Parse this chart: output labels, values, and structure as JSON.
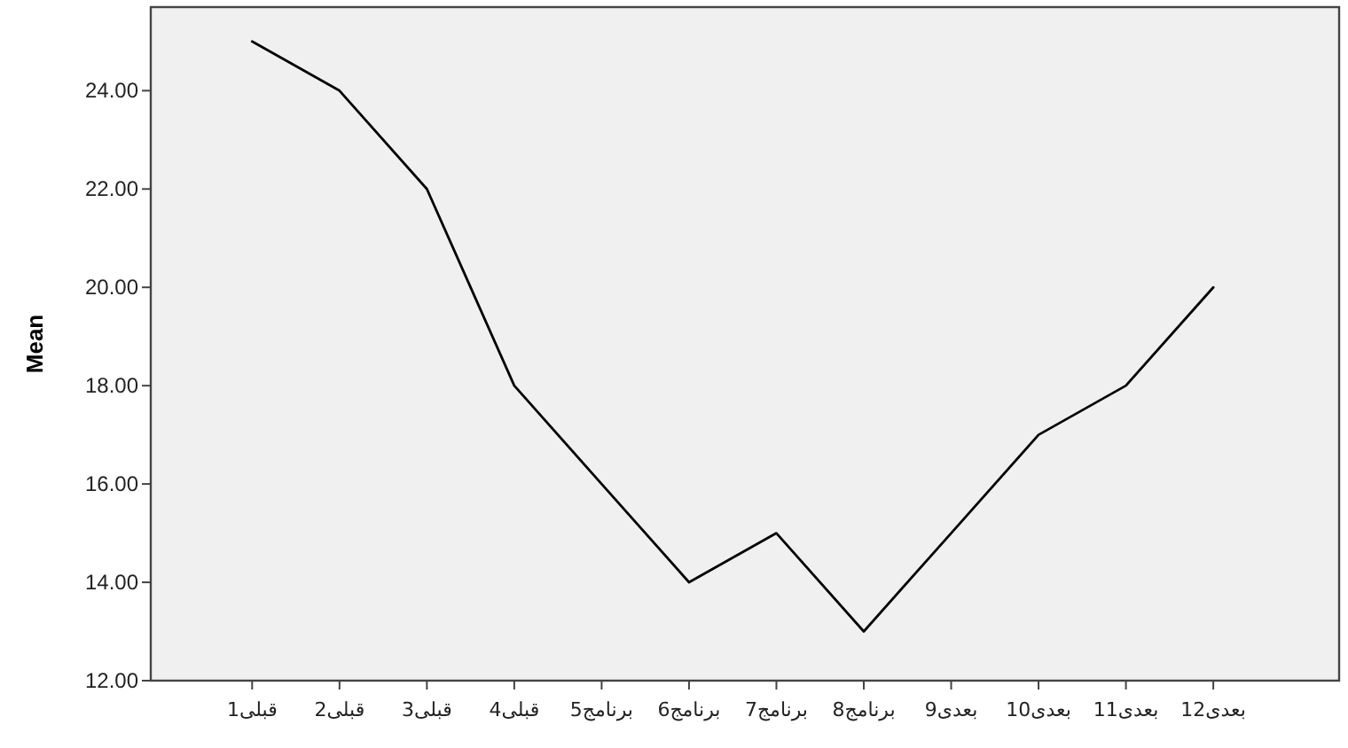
{
  "chart_data": {
    "type": "line",
    "ylabel": "Mean",
    "categories": [
      "قبلی1",
      "قبلی2",
      "قبلی3",
      "قبلی4",
      "برنامج5",
      "برنامج6",
      "برنامج7",
      "برنامج8",
      "بعدی9",
      "بعدی10",
      "بعدی11",
      "بعدی12"
    ],
    "series": [
      {
        "color": "#000000",
        "values": [
          25,
          24,
          22,
          18,
          16,
          14,
          15,
          13,
          15,
          17,
          18,
          20
        ]
      }
    ],
    "ylim": [
      12,
      25.7
    ],
    "yticks": [
      {
        "value": 12,
        "label": "12.00"
      },
      {
        "value": 14,
        "label": "14.00"
      },
      {
        "value": 16,
        "label": "16.00"
      },
      {
        "value": 18,
        "label": "18.00"
      },
      {
        "value": 20,
        "label": "20.00"
      },
      {
        "value": 22,
        "label": "22.00"
      },
      {
        "value": 24,
        "label": "24.00"
      }
    ],
    "grid": false,
    "marker": "none",
    "line_style": "solid"
  }
}
